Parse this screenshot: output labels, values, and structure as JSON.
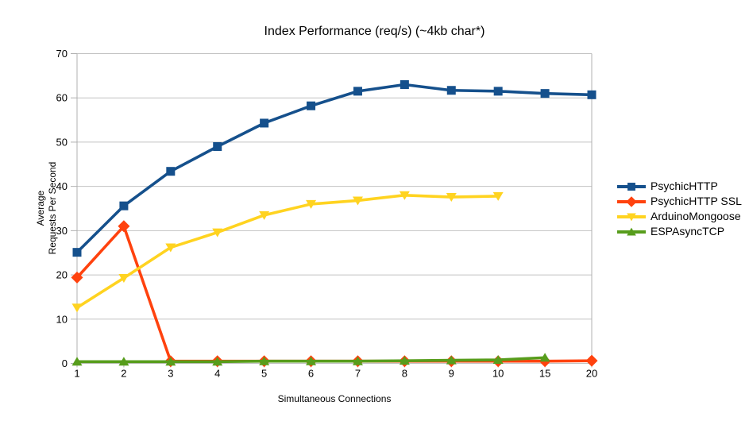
{
  "chart_data": {
    "type": "line",
    "title": "Index Performance (req/s) (~4kb char*)",
    "xlabel": "Simultaneous Connections",
    "ylabel": "Average Requests Per Second",
    "ylabel_lines": [
      "Average",
      "Requests Per Second"
    ],
    "categories": [
      "1",
      "2",
      "3",
      "4",
      "5",
      "6",
      "7",
      "8",
      "9",
      "10",
      "15",
      "20"
    ],
    "ylim": [
      0,
      70
    ],
    "ytick_step": 10,
    "grid": "horizontal-only",
    "legend_position": "right",
    "background_color": "#ffffff",
    "grid_color": "#c2c2c2",
    "axis_color": "#b0b0b0",
    "text_color": "#000000",
    "series": [
      {
        "name": "PsychicHTTP",
        "color": "#15508c",
        "marker": "square",
        "values": [
          25.1,
          35.6,
          43.4,
          49.0,
          54.3,
          58.2,
          61.5,
          63.0,
          61.7,
          61.5,
          61.0,
          60.7
        ]
      },
      {
        "name": "PsychicHTTP SSL",
        "color": "#ff420e",
        "marker": "diamond",
        "values": [
          19.4,
          31.0,
          0.5,
          0.5,
          0.5,
          0.5,
          0.5,
          0.5,
          0.5,
          0.5,
          0.5,
          0.6
        ]
      },
      {
        "name": "ArduinoMongoose",
        "color": "#ffd320",
        "marker": "triangle-down",
        "values": [
          12.6,
          19.3,
          26.2,
          29.6,
          33.5,
          36.0,
          36.8,
          38.0,
          37.6,
          37.8,
          null,
          null
        ]
      },
      {
        "name": "ESPAsyncTCP",
        "color": "#579d1c",
        "marker": "triangle-up",
        "values": [
          0.4,
          0.4,
          0.4,
          0.4,
          0.5,
          0.5,
          0.5,
          0.6,
          0.7,
          0.8,
          1.3,
          null
        ]
      }
    ]
  }
}
